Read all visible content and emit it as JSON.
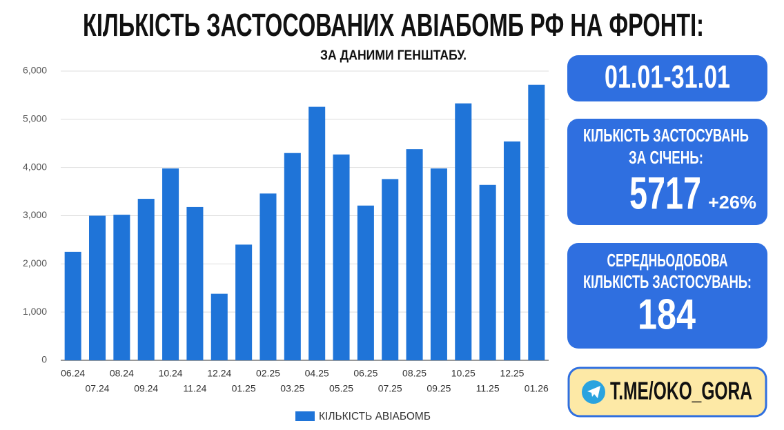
{
  "chart_data": {
    "type": "bar",
    "title": "КІЛЬКІСТЬ ЗАСТОСОВАНИХ АВІАБОМБ РФ НА ФРОНТІ:",
    "subtitle": "ЗА ДАНИМИ ГЕНШТАБУ.",
    "categories": [
      "06.24",
      "07.24",
      "08.24",
      "09.24",
      "10.24",
      "11.24",
      "12.24",
      "01.25",
      "02.25",
      "03.25",
      "04.25",
      "05.25",
      "06.25",
      "07.25",
      "08.25",
      "09.25",
      "10.25",
      "11.25",
      "12.25",
      "01.26"
    ],
    "series": [
      {
        "name": "КІЛЬКІСТЬ АВІАБОМБ",
        "color": "#1f74d8",
        "values": [
          2250,
          3000,
          3020,
          3350,
          3980,
          3180,
          1380,
          2400,
          3460,
          4300,
          5260,
          4270,
          3210,
          3760,
          4380,
          3980,
          5330,
          3640,
          4540,
          5717
        ]
      }
    ],
    "ylim": [
      0,
      6000
    ],
    "yticks": [
      0,
      {
        "value": 1000,
        "label": "1,000"
      },
      {
        "value": 2000,
        "label": "2,000"
      },
      {
        "value": 3000,
        "label": "3,000"
      },
      {
        "value": 4000,
        "label": "4,000"
      },
      {
        "value": 5000,
        "label": "5,000"
      },
      {
        "value": 6000,
        "label": "6,000"
      }
    ],
    "grid": true,
    "legend": "bottom"
  },
  "panels": {
    "period": "01.01-31.01",
    "month_label_1": "КІЛЬКІСТЬ ЗАСТОСУВАНЬ",
    "month_label_2": "ЗА СІЧЕНЬ:",
    "month_total": "5717",
    "month_change": "+26%",
    "daily_label_1": "СЕРЕДНЬОДОБОВА",
    "daily_label_2": "КІЛЬКІСТЬ ЗАСТОСУВАНЬ:",
    "daily_average": "184",
    "link": "T.ME/OKO_GORA"
  }
}
